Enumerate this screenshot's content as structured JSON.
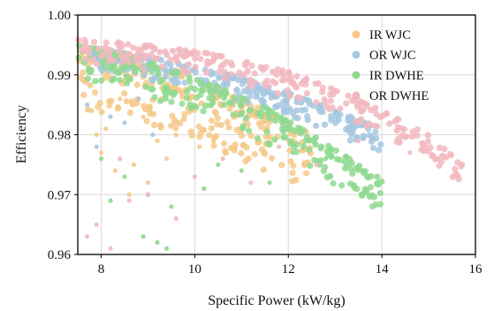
{
  "chart_data": {
    "type": "scatter",
    "title": "",
    "xlabel": "Specific Power (kW/kg)",
    "ylabel": "Efficiency",
    "xlim": [
      7.5,
      16
    ],
    "ylim": [
      0.96,
      1.0
    ],
    "xticks": [
      8,
      10,
      12,
      14,
      16
    ],
    "yticks": [
      0.96,
      0.97,
      0.98,
      0.99,
      1.0
    ],
    "xtick_labels": [
      "8",
      "10",
      "12",
      "14",
      "16"
    ],
    "ytick_labels": [
      "0.96",
      "0.97",
      "0.98",
      "0.99",
      "1.00"
    ],
    "grid": true,
    "legend_position": "top-right",
    "series": [
      {
        "name": "IR WJC",
        "color": "#f6c98a",
        "frontier": [
          [
            7.5,
            0.9945
          ],
          [
            8.5,
            0.9925
          ],
          [
            9.5,
            0.9905
          ],
          [
            10.5,
            0.9875
          ],
          [
            11.5,
            0.984
          ],
          [
            12.5,
            0.98
          ]
        ],
        "scatter": [
          [
            7.8,
            0.984
          ],
          [
            8.1,
            0.981
          ],
          [
            8.4,
            0.986
          ],
          [
            8.9,
            0.983
          ],
          [
            9.2,
            0.979
          ],
          [
            9.6,
            0.98
          ],
          [
            8.0,
            0.977
          ],
          [
            8.7,
            0.975
          ],
          [
            9.0,
            0.972
          ],
          [
            10.1,
            0.978
          ],
          [
            7.9,
            0.98
          ],
          [
            8.3,
            0.974
          ],
          [
            9.4,
            0.976
          ],
          [
            10.4,
            0.979
          ],
          [
            8.6,
            0.97
          ]
        ]
      },
      {
        "name": "OR WJC",
        "color": "#a6c8e0",
        "frontier": [
          [
            7.8,
            0.9945
          ],
          [
            9.0,
            0.993
          ],
          [
            10.0,
            0.9915
          ],
          [
            11.0,
            0.9895
          ],
          [
            12.0,
            0.987
          ],
          [
            13.0,
            0.984
          ],
          [
            14.0,
            0.981
          ]
        ],
        "scatter": [
          [
            7.7,
            0.985
          ],
          [
            8.2,
            0.983
          ],
          [
            8.8,
            0.986
          ],
          [
            9.1,
            0.98
          ],
          [
            7.9,
            0.978
          ],
          [
            8.5,
            0.982
          ]
        ]
      },
      {
        "name": "IR DWHE",
        "color": "#8fd98f",
        "frontier": [
          [
            7.5,
            0.995
          ],
          [
            8.5,
            0.9935
          ],
          [
            9.5,
            0.991
          ],
          [
            10.5,
            0.988
          ],
          [
            11.5,
            0.9845
          ],
          [
            12.5,
            0.98
          ],
          [
            13.0,
            0.9775
          ],
          [
            14.0,
            0.9725
          ]
        ],
        "scatter": [
          [
            8.0,
            0.976
          ],
          [
            8.5,
            0.973
          ],
          [
            9.0,
            0.97
          ],
          [
            9.5,
            0.968
          ],
          [
            10.2,
            0.971
          ],
          [
            11.0,
            0.974
          ],
          [
            12.1,
            0.977
          ],
          [
            12.8,
            0.976
          ],
          [
            13.6,
            0.974
          ],
          [
            8.9,
            0.963
          ],
          [
            9.2,
            0.962
          ],
          [
            9.4,
            0.961
          ],
          [
            8.2,
            0.969
          ],
          [
            10.5,
            0.975
          ],
          [
            11.6,
            0.972
          ]
        ]
      },
      {
        "name": "OR DWHE",
        "color": "#f2b8bf",
        "frontier": [
          [
            7.5,
            0.996
          ],
          [
            9.0,
            0.995
          ],
          [
            10.0,
            0.994
          ],
          [
            11.0,
            0.9925
          ],
          [
            12.0,
            0.9905
          ],
          [
            13.0,
            0.9875
          ],
          [
            14.0,
            0.984
          ],
          [
            15.0,
            0.98
          ],
          [
            15.8,
            0.9745
          ]
        ],
        "scatter": [
          [
            7.7,
            0.963
          ],
          [
            7.9,
            0.965
          ],
          [
            8.2,
            0.961
          ],
          [
            8.6,
            0.969
          ],
          [
            9.0,
            0.97
          ],
          [
            10.0,
            0.973
          ],
          [
            10.6,
            0.976
          ],
          [
            11.8,
            0.978
          ],
          [
            12.6,
            0.975
          ],
          [
            13.5,
            0.979
          ],
          [
            14.6,
            0.977
          ],
          [
            15.2,
            0.976
          ],
          [
            8.4,
            0.976
          ],
          [
            9.6,
            0.966
          ],
          [
            11.2,
            0.972
          ]
        ]
      }
    ]
  }
}
